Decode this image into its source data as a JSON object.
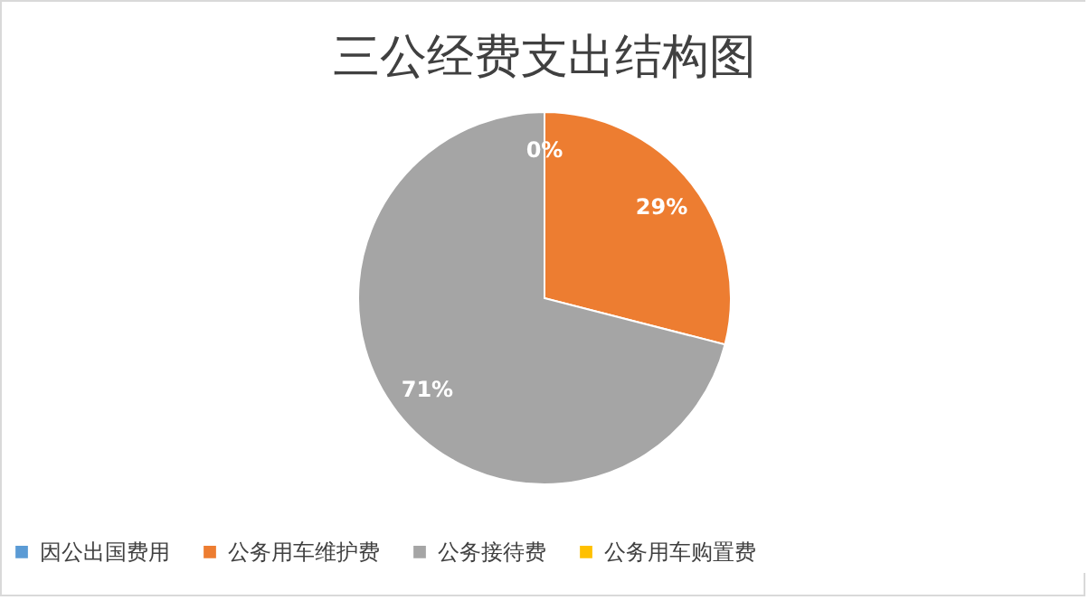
{
  "chart_data": {
    "type": "pie",
    "title": "三公经费支出结构图",
    "categories": [
      "因公出国费用",
      "公务用车维护费",
      "公务接待费",
      "公务用车购置费"
    ],
    "values": [
      0,
      29,
      71,
      0
    ],
    "colors": [
      "#5b9bd5",
      "#ed7d31",
      "#a5a5a5",
      "#ffc000"
    ],
    "value_labels": [
      "0%",
      "29%",
      "71%",
      null
    ],
    "legend": "bottom"
  }
}
